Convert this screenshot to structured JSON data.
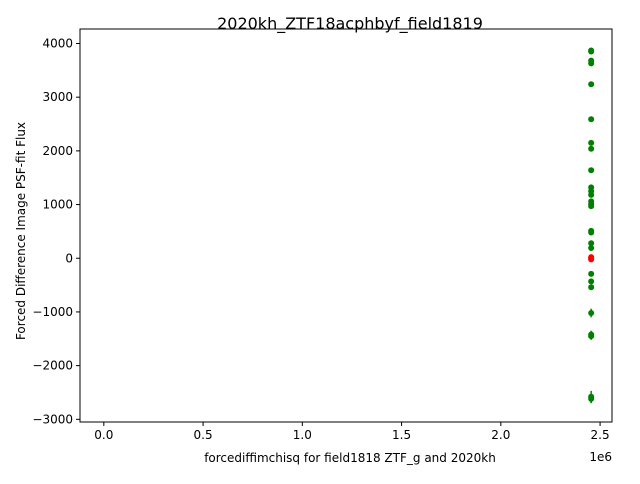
{
  "chart_data": {
    "type": "scatter",
    "title": "2020kh_ZTF18acphbyf_field1819",
    "xlabel": "forcediffimchisq for field1818 ZTF_g and 2020kh",
    "ylabel": "Forced Difference Image PSF-fit Flux",
    "x_offset_label": "1e6",
    "xlim": [
      -0.12,
      2.56
    ],
    "ylim": [
      -3050,
      4270
    ],
    "x_scale": 1000000,
    "xticks": [
      0.0,
      0.5,
      1.0,
      1.5,
      2.0,
      2.5
    ],
    "xtick_labels": [
      "0.0",
      "0.5",
      "1.0",
      "1.5",
      "2.0",
      "2.5"
    ],
    "yticks": [
      -3000,
      -2000,
      -1000,
      0,
      1000,
      2000,
      3000,
      4000
    ],
    "ytick_labels": [
      "−3000",
      "−2000",
      "−1000",
      "0",
      "1000",
      "2000",
      "3000",
      "4000"
    ],
    "grid": false,
    "series": [
      {
        "color": "#008000",
        "x": [
          2.455,
          2.455,
          2.455,
          2.455,
          2.455,
          2.455,
          2.455,
          2.455,
          2.455,
          2.455,
          2.455,
          2.455,
          2.455,
          2.455,
          2.455,
          2.455,
          2.455,
          2.455,
          2.455,
          2.455,
          2.455,
          2.455,
          2.455,
          2.455,
          2.455,
          2.455,
          2.455
        ],
        "y": [
          3870,
          3850,
          3680,
          3630,
          3240,
          2590,
          2150,
          2040,
          1640,
          1320,
          1250,
          1180,
          1060,
          1010,
          970,
          510,
          480,
          280,
          190,
          -290,
          -430,
          -540,
          -1020,
          -1420,
          -1450,
          -2580,
          -2620
        ],
        "yerr": [
          40,
          40,
          50,
          50,
          40,
          40,
          40,
          40,
          30,
          50,
          40,
          40,
          30,
          30,
          30,
          30,
          30,
          30,
          30,
          30,
          30,
          30,
          80,
          70,
          70,
          110,
          80
        ]
      },
      {
        "color": "#ff0000",
        "x": [
          2.455,
          2.455,
          2.455
        ],
        "y": [
          20,
          0,
          -20
        ],
        "yerr": [
          10,
          10,
          10
        ]
      }
    ]
  }
}
